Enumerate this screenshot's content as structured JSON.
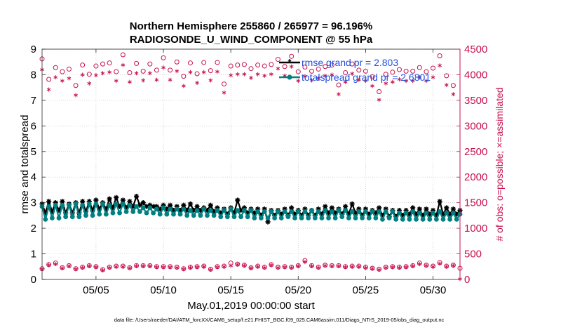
{
  "chart_data": {
    "type": "line",
    "title": "Northern Hemisphere 255860 / 265977 = 96.196%",
    "subtitle": "RADIOSONDE_U_WIND_COMPONENT @ 55 hPa",
    "xlabel": "May.01,2019 00:00:00 start",
    "ylabel": "rmse and totalspread",
    "y2label": "# of obs: o=possible; ×=assimilated",
    "footnote": "data file: /Users/raeder/DAI/ATM_forcXX/CAM6_setup/f.e21.FHIST_BGC.f09_025.CAM6assim.011/Diags_NTrS_2019-05/obs_diag_output.nc",
    "xlim": [
      1,
      32
    ],
    "ylim": [
      0,
      9
    ],
    "y2lim": [
      0,
      4500
    ],
    "xticks": [
      5,
      10,
      15,
      20,
      25,
      30
    ],
    "xtick_labels": [
      "05/05",
      "05/10",
      "05/15",
      "05/20",
      "05/25",
      "05/30"
    ],
    "yticks": [
      0,
      1,
      2,
      3,
      4,
      5,
      6,
      7,
      8,
      9
    ],
    "y2ticks": [
      0,
      500,
      1000,
      1500,
      2000,
      2500,
      3000,
      3500,
      4000,
      4500
    ],
    "grid": true,
    "legend_location": "top-right",
    "series": [
      {
        "name": "rmse grand pr = 2.803",
        "color": "#000000",
        "marker": "star",
        "axis": "left",
        "x": [
          1.0,
          1.25,
          1.5,
          1.75,
          2.0,
          2.25,
          2.5,
          2.75,
          3.0,
          3.25,
          3.5,
          3.75,
          4.0,
          4.25,
          4.5,
          4.75,
          5.0,
          5.25,
          5.5,
          5.75,
          6.0,
          6.25,
          6.5,
          6.75,
          7.0,
          7.25,
          7.5,
          7.75,
          8.0,
          8.25,
          8.5,
          8.75,
          9.0,
          9.25,
          9.5,
          9.75,
          10.0,
          10.25,
          10.5,
          10.75,
          11.0,
          11.25,
          11.5,
          11.75,
          12.0,
          12.25,
          12.5,
          12.75,
          13.0,
          13.25,
          13.5,
          13.75,
          14.0,
          14.25,
          14.5,
          14.75,
          15.0,
          15.25,
          15.5,
          15.75,
          16.0,
          16.25,
          16.5,
          16.75,
          17.0,
          17.25,
          17.5,
          17.75,
          18.0,
          18.25,
          18.5,
          18.75,
          19.0,
          19.25,
          19.5,
          19.75,
          20.0,
          20.25,
          20.5,
          20.75,
          21.0,
          21.25,
          21.5,
          21.75,
          22.0,
          22.25,
          22.5,
          22.75,
          23.0,
          23.25,
          23.5,
          23.75,
          24.0,
          24.25,
          24.5,
          24.75,
          25.0,
          25.25,
          25.5,
          25.75,
          26.0,
          26.25,
          26.5,
          26.75,
          27.0,
          27.25,
          27.5,
          27.75,
          28.0,
          28.25,
          28.5,
          28.75,
          29.0,
          29.25,
          29.5,
          29.75,
          30.0,
          30.25,
          30.5,
          30.75,
          31.0,
          31.25,
          31.5,
          31.75,
          32.0
        ],
        "y": [
          2.95,
          2.6,
          3.05,
          2.65,
          3.0,
          2.7,
          3.05,
          2.6,
          2.95,
          2.6,
          3.0,
          2.6,
          3.05,
          2.65,
          3.05,
          2.7,
          3.1,
          2.75,
          3.0,
          2.75,
          3.15,
          2.8,
          3.2,
          2.85,
          3.1,
          2.8,
          3.05,
          2.85,
          3.25,
          2.9,
          3.0,
          2.85,
          2.9,
          2.85,
          2.85,
          2.75,
          2.9,
          2.75,
          2.9,
          2.7,
          2.85,
          2.7,
          2.9,
          2.7,
          2.95,
          2.7,
          2.85,
          2.7,
          2.8,
          2.7,
          2.9,
          2.65,
          2.8,
          2.6,
          2.75,
          2.55,
          2.8,
          2.6,
          3.1,
          2.7,
          2.8,
          2.6,
          2.75,
          2.6,
          2.75,
          2.5,
          2.75,
          2.25,
          2.7,
          2.5,
          2.7,
          2.55,
          2.75,
          2.5,
          2.8,
          2.55,
          2.7,
          2.5,
          2.75,
          2.5,
          2.7,
          2.5,
          2.75,
          2.55,
          2.85,
          2.6,
          2.8,
          2.6,
          2.75,
          2.55,
          2.85,
          2.55,
          2.95,
          2.6,
          2.75,
          2.5,
          2.75,
          2.55,
          2.7,
          2.6,
          2.8,
          2.5,
          2.75,
          2.45,
          2.7,
          2.45,
          2.7,
          2.5,
          2.7,
          2.55,
          2.8,
          2.55,
          2.75,
          2.5,
          2.75,
          2.55,
          2.7,
          2.5,
          3.05,
          2.55,
          2.8,
          2.55,
          2.75,
          2.55,
          2.7
        ]
      },
      {
        "name": "totalspread grand pr = 2.6801",
        "color": "#008080",
        "marker": "dot",
        "axis": "left",
        "x": [
          1.0,
          1.25,
          1.5,
          1.75,
          2.0,
          2.25,
          2.5,
          2.75,
          3.0,
          3.25,
          3.5,
          3.75,
          4.0,
          4.25,
          4.5,
          4.75,
          5.0,
          5.25,
          5.5,
          5.75,
          6.0,
          6.25,
          6.5,
          6.75,
          7.0,
          7.25,
          7.5,
          7.75,
          8.0,
          8.25,
          8.5,
          8.75,
          9.0,
          9.25,
          9.5,
          9.75,
          10.0,
          10.25,
          10.5,
          10.75,
          11.0,
          11.25,
          11.5,
          11.75,
          12.0,
          12.25,
          12.5,
          12.75,
          13.0,
          13.25,
          13.5,
          13.75,
          14.0,
          14.25,
          14.5,
          14.75,
          15.0,
          15.25,
          15.5,
          15.75,
          16.0,
          16.25,
          16.5,
          16.75,
          17.0,
          17.25,
          17.5,
          17.75,
          18.0,
          18.25,
          18.5,
          18.75,
          19.0,
          19.25,
          19.5,
          19.75,
          20.0,
          20.25,
          20.5,
          20.75,
          21.0,
          21.25,
          21.5,
          21.75,
          22.0,
          22.25,
          22.5,
          22.75,
          23.0,
          23.25,
          23.5,
          23.75,
          24.0,
          24.25,
          24.5,
          24.75,
          25.0,
          25.25,
          25.5,
          25.75,
          26.0,
          26.25,
          26.5,
          26.75,
          27.0,
          27.25,
          27.5,
          27.75,
          28.0,
          28.25,
          28.5,
          28.75,
          29.0,
          29.25,
          29.5,
          29.75,
          30.0,
          30.25,
          30.5,
          30.75,
          31.0,
          31.25,
          31.5,
          31.75,
          32.0
        ],
        "y": [
          2.85,
          2.35,
          2.85,
          2.4,
          2.9,
          2.4,
          2.9,
          2.45,
          2.9,
          2.45,
          2.95,
          2.45,
          2.9,
          2.5,
          2.95,
          2.5,
          2.95,
          2.55,
          2.95,
          2.55,
          2.9,
          2.6,
          2.95,
          2.6,
          2.95,
          2.65,
          2.9,
          2.65,
          2.85,
          2.65,
          2.8,
          2.6,
          2.8,
          2.6,
          2.75,
          2.55,
          2.8,
          2.55,
          2.75,
          2.55,
          2.75,
          2.55,
          2.75,
          2.5,
          2.7,
          2.5,
          2.7,
          2.5,
          2.75,
          2.5,
          2.7,
          2.5,
          2.7,
          2.45,
          2.7,
          2.45,
          2.75,
          2.45,
          2.7,
          2.45,
          2.7,
          2.45,
          2.7,
          2.4,
          2.65,
          2.4,
          2.65,
          2.4,
          2.65,
          2.4,
          2.65,
          2.4,
          2.65,
          2.45,
          2.65,
          2.4,
          2.65,
          2.4,
          2.65,
          2.4,
          2.7,
          2.4,
          2.65,
          2.4,
          2.7,
          2.4,
          2.65,
          2.4,
          2.7,
          2.45,
          2.7,
          2.4,
          2.65,
          2.4,
          2.65,
          2.4,
          2.65,
          2.4,
          2.65,
          2.4,
          2.65,
          2.35,
          2.65,
          2.4,
          2.65,
          2.35,
          2.6,
          2.35,
          2.6,
          2.35,
          2.65,
          2.35,
          2.6,
          2.35,
          2.6,
          2.35,
          2.6,
          2.35,
          2.65,
          2.35,
          2.6,
          2.35,
          2.6,
          2.35,
          2.55
        ]
      },
      {
        "name": "obs possible (upper)",
        "color": "#c8104f",
        "marker": "circle",
        "axis": "right",
        "x": [
          1.0,
          1.5,
          2.0,
          2.5,
          3.0,
          3.5,
          4.0,
          4.5,
          5.0,
          5.5,
          6.0,
          6.5,
          7.0,
          7.5,
          8.0,
          8.5,
          9.0,
          9.5,
          10.0,
          10.5,
          11.0,
          11.5,
          12.0,
          12.5,
          13.0,
          13.5,
          14.0,
          14.5,
          15.0,
          15.5,
          16.0,
          16.5,
          17.0,
          17.5,
          18.0,
          18.5,
          19.0,
          19.5,
          20.0,
          20.5,
          21.0,
          21.5,
          22.0,
          22.5,
          23.0,
          23.5,
          24.0,
          24.5,
          25.0,
          25.5,
          26.0,
          26.5,
          27.0,
          27.5,
          28.0,
          28.5,
          29.0,
          29.5,
          30.0,
          30.5,
          31.0,
          31.5
        ],
        "y": [
          4310,
          3910,
          4140,
          4060,
          4110,
          3790,
          4190,
          4010,
          4170,
          4210,
          4230,
          4060,
          4390,
          4040,
          4220,
          4070,
          4210,
          4090,
          4330,
          4090,
          4250,
          3970,
          4230,
          4020,
          4240,
          4080,
          4240,
          3820,
          4170,
          4190,
          4200,
          4120,
          4190,
          4170,
          4200,
          4300,
          4160,
          4360,
          4060,
          4150,
          4070,
          4110,
          4160,
          4190,
          3800,
          4040,
          4210,
          4090,
          4070,
          3960,
          3670,
          4010,
          4050,
          4100,
          4070,
          4070,
          4140,
          4060,
          4130,
          4370,
          3980,
          3790
        ]
      },
      {
        "name": "obs assimilated (upper)",
        "color": "#c8104f",
        "marker": "asterisk",
        "axis": "right",
        "x": [
          1.0,
          1.5,
          2.0,
          2.5,
          3.0,
          3.5,
          4.0,
          4.5,
          5.0,
          5.5,
          6.0,
          6.5,
          7.0,
          7.5,
          8.0,
          8.5,
          9.0,
          9.5,
          10.0,
          10.5,
          11.0,
          11.5,
          12.0,
          12.5,
          13.0,
          13.5,
          14.0,
          14.5,
          15.0,
          15.5,
          16.0,
          16.5,
          17.0,
          17.5,
          18.0,
          18.5,
          19.0,
          19.5,
          20.0,
          20.5,
          21.0,
          21.5,
          22.0,
          22.5,
          23.0,
          23.5,
          24.0,
          24.5,
          25.0,
          25.5,
          26.0,
          26.5,
          27.0,
          27.5,
          28.0,
          28.5,
          29.0,
          29.5,
          30.0,
          30.5,
          31.0,
          31.5
        ],
        "y": [
          4100,
          3710,
          3950,
          3880,
          3930,
          3600,
          4000,
          3830,
          3990,
          4030,
          4050,
          3880,
          4190,
          3860,
          4030,
          3890,
          4030,
          3900,
          4140,
          3900,
          4070,
          3780,
          4050,
          3840,
          4050,
          3890,
          4060,
          3650,
          3990,
          4010,
          4010,
          3940,
          4010,
          3980,
          4010,
          4120,
          3980,
          4160,
          3880,
          3970,
          3890,
          3930,
          3980,
          4000,
          3620,
          3860,
          4020,
          3900,
          3880,
          3780,
          3510,
          3830,
          3860,
          3910,
          3880,
          3880,
          3950,
          3880,
          3950,
          4180,
          3800,
          3620
        ]
      },
      {
        "name": "obs possible (lower)",
        "color": "#c8104f",
        "marker": "circle",
        "axis": "right",
        "x": [
          1.0,
          1.5,
          2.0,
          2.5,
          3.0,
          3.5,
          4.0,
          4.5,
          5.0,
          5.5,
          6.0,
          6.5,
          7.0,
          7.5,
          8.0,
          8.5,
          9.0,
          9.5,
          10.0,
          10.5,
          11.0,
          11.5,
          12.0,
          12.5,
          13.0,
          13.5,
          14.0,
          14.5,
          15.0,
          15.5,
          16.0,
          16.5,
          17.0,
          17.5,
          18.0,
          18.5,
          19.0,
          19.5,
          20.0,
          20.5,
          21.0,
          21.5,
          22.0,
          22.5,
          23.0,
          23.5,
          24.0,
          24.5,
          25.0,
          25.5,
          26.0,
          26.5,
          27.0,
          27.5,
          28.0,
          28.5,
          29.0,
          29.5,
          30.0,
          30.5,
          31.0,
          31.5,
          32.0
        ],
        "y": [
          210,
          290,
          320,
          230,
          270,
          210,
          240,
          270,
          250,
          190,
          240,
          260,
          260,
          230,
          270,
          270,
          270,
          250,
          250,
          250,
          240,
          210,
          240,
          250,
          260,
          200,
          250,
          260,
          320,
          300,
          280,
          230,
          260,
          240,
          290,
          240,
          250,
          240,
          270,
          370,
          270,
          240,
          280,
          270,
          270,
          250,
          260,
          260,
          240,
          220,
          200,
          240,
          250,
          240,
          250,
          270,
          320,
          280,
          260,
          330,
          260,
          280,
          220
        ]
      },
      {
        "name": "obs assimilated (lower)",
        "color": "#c8104f",
        "marker": "asterisk",
        "axis": "right",
        "x": [
          1.0,
          1.5,
          2.0,
          2.5,
          3.0,
          3.5,
          4.0,
          4.5,
          5.0,
          5.5,
          6.0,
          6.5,
          7.0,
          7.5,
          8.0,
          8.5,
          9.0,
          9.5,
          10.0,
          10.5,
          11.0,
          11.5,
          12.0,
          12.5,
          13.0,
          13.5,
          14.0,
          14.5,
          15.0,
          15.5,
          16.0,
          16.5,
          17.0,
          17.5,
          18.0,
          18.5,
          19.0,
          19.5,
          20.0,
          20.5,
          21.0,
          21.5,
          22.0,
          22.5,
          23.0,
          23.5,
          24.0,
          24.5,
          25.0,
          25.5,
          26.0,
          26.5,
          27.0,
          27.5,
          28.0,
          28.5,
          29.0,
          29.5,
          30.0,
          30.5,
          31.0,
          31.5,
          32.0
        ],
        "y": [
          200,
          280,
          300,
          220,
          260,
          200,
          230,
          260,
          240,
          180,
          230,
          250,
          250,
          220,
          260,
          260,
          260,
          240,
          240,
          240,
          230,
          200,
          230,
          240,
          250,
          190,
          240,
          250,
          270,
          290,
          270,
          220,
          250,
          230,
          280,
          230,
          240,
          230,
          260,
          340,
          260,
          230,
          270,
          260,
          260,
          240,
          250,
          250,
          230,
          210,
          190,
          230,
          240,
          230,
          240,
          260,
          300,
          270,
          250,
          310,
          250,
          270,
          10
        ]
      }
    ]
  }
}
